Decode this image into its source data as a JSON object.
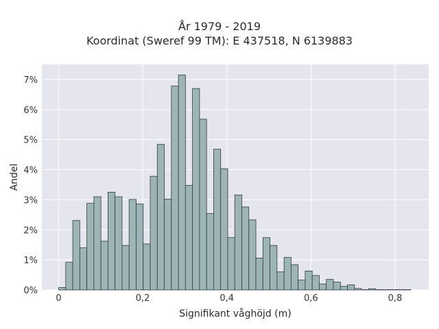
{
  "chart_data": {
    "type": "bar",
    "title_line1": "År 1979 - 2019",
    "title_line2": "Koordinat (Sweref 99 TM): E 437518, N 6139883",
    "xlabel": "Signifikant våghöjd (m)",
    "ylabel": "Andel",
    "xlim": [
      -0.04,
      0.88
    ],
    "ylim": [
      0,
      7.5
    ],
    "xticks": [
      {
        "value": 0,
        "label": "0"
      },
      {
        "value": 0.2,
        "label": "0,2"
      },
      {
        "value": 0.4,
        "label": "0,4"
      },
      {
        "value": 0.6,
        "label": "0,6"
      },
      {
        "value": 0.8,
        "label": "0,8"
      }
    ],
    "yticks": [
      {
        "value": 0,
        "label": "0%"
      },
      {
        "value": 1,
        "label": "1%"
      },
      {
        "value": 2,
        "label": "2%"
      },
      {
        "value": 3,
        "label": "3%"
      },
      {
        "value": 4,
        "label": "4%"
      },
      {
        "value": 5,
        "label": "5%"
      },
      {
        "value": 6,
        "label": "6%"
      },
      {
        "value": 7,
        "label": "7%"
      }
    ],
    "bin_start": 0,
    "bin_width": 0.01675,
    "values": [
      0.08,
      0.92,
      2.31,
      1.4,
      2.88,
      3.1,
      1.62,
      3.25,
      3.1,
      1.48,
      3.01,
      2.86,
      1.53,
      3.78,
      4.84,
      3.02,
      6.78,
      7.15,
      3.48,
      6.7,
      5.68,
      2.54,
      4.68,
      4.03,
      1.74,
      3.16,
      2.76,
      2.33,
      1.06,
      1.74,
      1.48,
      0.6,
      1.08,
      0.84,
      0.33,
      0.63,
      0.48,
      0.2,
      0.35,
      0.26,
      0.12,
      0.17,
      0.05,
      0.01,
      0.04,
      0.01,
      0.01,
      0.01,
      0.01,
      0.01
    ],
    "grid": true,
    "colors": {
      "plot_background": "#e5e5f0",
      "grid": "#ffffff",
      "bar_fill": "#9db5b5",
      "bar_stroke": "#2f3a3a"
    }
  }
}
